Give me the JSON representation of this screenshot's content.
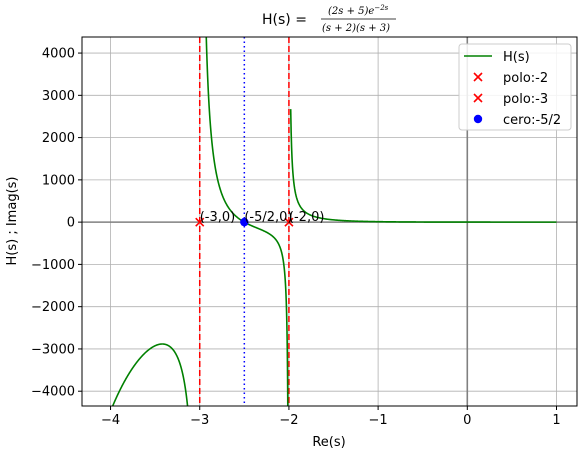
{
  "chart_data": {
    "type": "line",
    "title_prefix": "H(s) = ",
    "title_numerator": "(2s + 5)e",
    "title_exponent": "−2s",
    "title_denominator": "(s + 2)(s + 3)",
    "xlabel": "Re(s)",
    "ylabel": "H(s) ; Imag(s)",
    "xlim": [
      -4.32,
      1.23
    ],
    "ylim": [
      -4350,
      4380
    ],
    "xticks": [
      -4,
      -3,
      -2,
      -1,
      0,
      1
    ],
    "yticks": [
      -4000,
      -3000,
      -2000,
      -1000,
      0,
      1000,
      2000,
      3000,
      4000
    ],
    "x_tick_labels": [
      "−4",
      "−3",
      "−2",
      "−1",
      "0",
      "1"
    ],
    "y_tick_labels": [
      "−4000",
      "−3000",
      "−2000",
      "−1000",
      "0",
      "1000",
      "2000",
      "3000",
      "4000"
    ],
    "grid": true,
    "legend_position": "top-right",
    "series": [
      {
        "name": "H(s)",
        "color": "#008000",
        "segments": [
          {
            "x_start": -4.0,
            "x_end": -3.1
          },
          {
            "x_start": -2.99,
            "x_end": -2.01
          },
          {
            "x_start": -1.98,
            "x_end": 1.0
          }
        ]
      }
    ],
    "poles": [
      {
        "name": "polo:-2",
        "x": -2,
        "y": 0,
        "color": "#ff0000",
        "annotation": "(-2,0)"
      },
      {
        "name": "polo:-3",
        "x": -3,
        "y": 0,
        "color": "#ff0000",
        "annotation": "(-3,0)"
      }
    ],
    "zeros": [
      {
        "name": "cero:-5/2",
        "x": -2.5,
        "y": 0,
        "color": "#0000ff",
        "annotation": "(-5/2,0)"
      }
    ],
    "vertical_lines": [
      {
        "x": -3,
        "color": "#ff0000",
        "style": "dashed"
      },
      {
        "x": -2,
        "color": "#ff0000",
        "style": "dashed"
      },
      {
        "x": -2.5,
        "color": "#0000ff",
        "style": "dotted"
      }
    ],
    "reference_axes": {
      "x": 0,
      "y": 0,
      "color": "#808080"
    }
  }
}
